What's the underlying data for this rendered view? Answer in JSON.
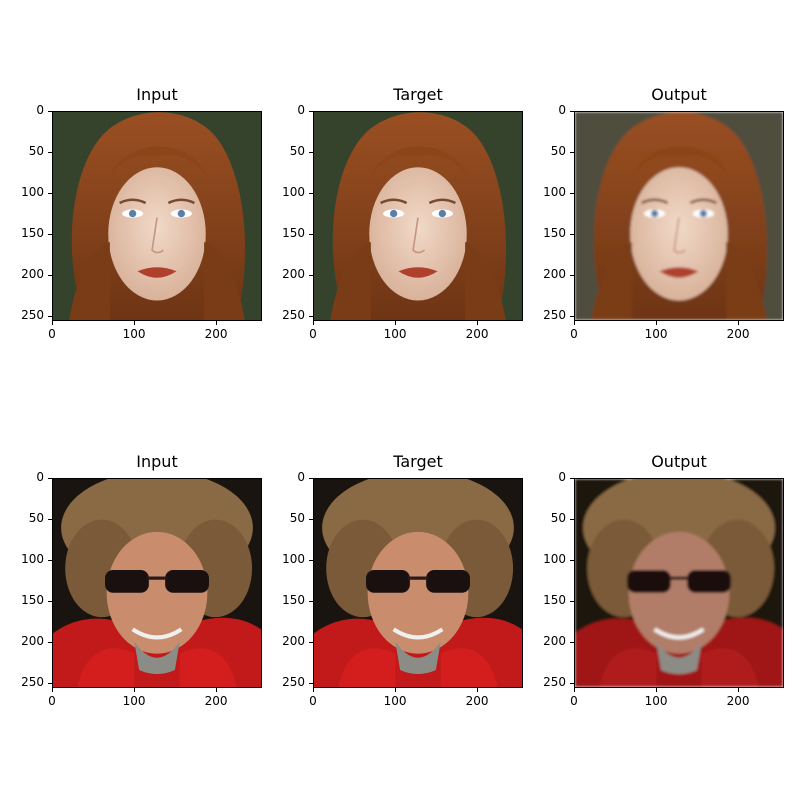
{
  "figure": {
    "rows": [
      {
        "panels": [
          {
            "title": "Input",
            "subject": "woman-red-hair",
            "variant": "sharp"
          },
          {
            "title": "Target",
            "subject": "woman-red-hair",
            "variant": "sharp"
          },
          {
            "title": "Output",
            "subject": "woman-red-hair",
            "variant": "soft"
          }
        ]
      },
      {
        "panels": [
          {
            "title": "Input",
            "subject": "man-curly-hair-sunglasses",
            "variant": "sharp"
          },
          {
            "title": "Target",
            "subject": "man-curly-hair-sunglasses",
            "variant": "sharp"
          },
          {
            "title": "Output",
            "subject": "man-curly-hair-sunglasses",
            "variant": "soft"
          }
        ]
      }
    ],
    "y_ticks": [
      "0",
      "50",
      "100",
      "150",
      "200",
      "250"
    ],
    "x_ticks": [
      "0",
      "100",
      "200"
    ]
  }
}
